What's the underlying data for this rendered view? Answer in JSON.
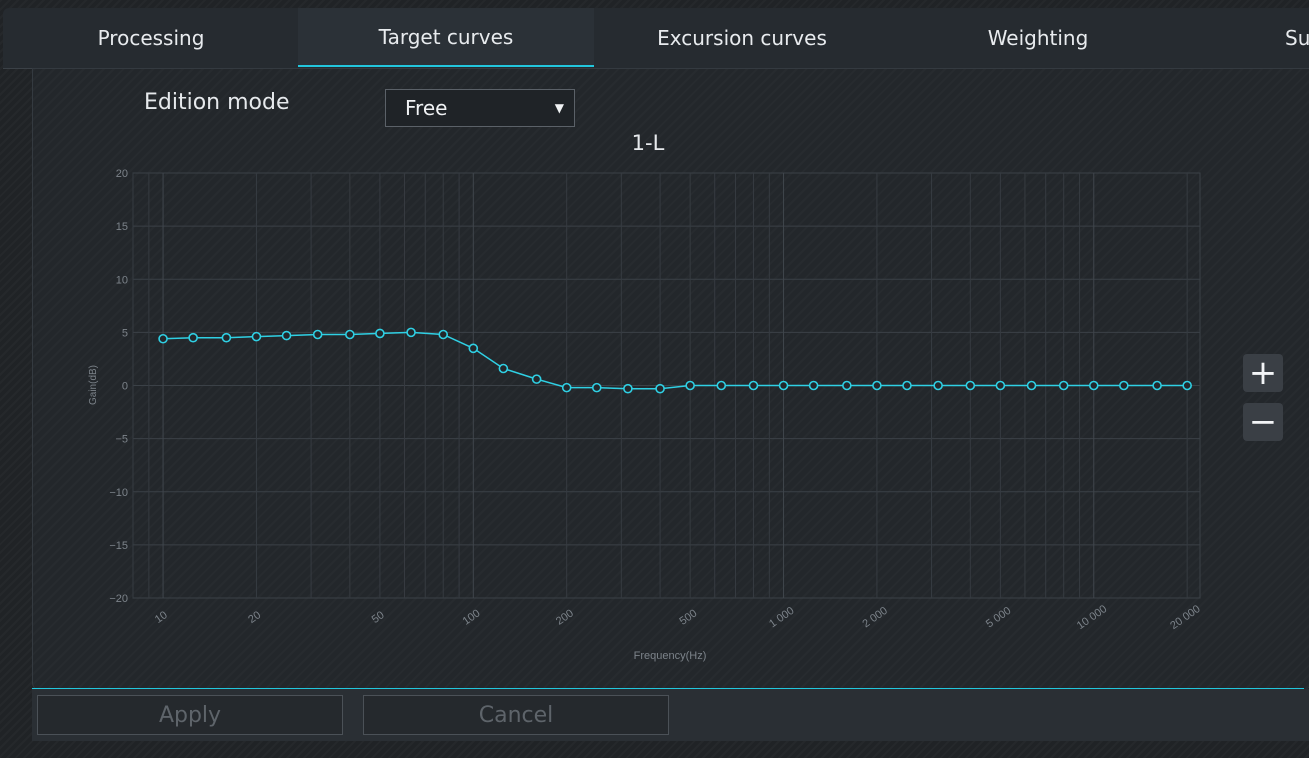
{
  "tabs": [
    {
      "label": "Processing",
      "active": false
    },
    {
      "label": "Target curves",
      "active": true
    },
    {
      "label": "Excursion curves",
      "active": false
    },
    {
      "label": "Weighting",
      "active": false
    },
    {
      "label": "Su",
      "active": false
    }
  ],
  "edition": {
    "label": "Edition mode",
    "value": "Free"
  },
  "zoom": {
    "plus": "+",
    "minus": "−"
  },
  "buttons": {
    "apply": "Apply",
    "cancel": "Cancel"
  },
  "colors": {
    "accent": "#22c6dc",
    "curve": "#2fd0e4"
  },
  "chart_data": {
    "type": "line",
    "title": "1-L",
    "xlabel": "Frequency(Hz)",
    "ylabel": "Gain(dB)",
    "xscale": "log",
    "xlim": [
      8,
      22000
    ],
    "ylim": [
      -20,
      20
    ],
    "yticks": [
      20,
      15,
      10,
      5,
      0,
      -5,
      -10,
      -15,
      -20
    ],
    "ytick_labels": [
      "20",
      "15",
      "10",
      "5",
      "0",
      "−5",
      "−10",
      "−15",
      "−20"
    ],
    "xticks": [
      10,
      20,
      50,
      100,
      200,
      500,
      1000,
      2000,
      5000,
      10000,
      20000
    ],
    "xtick_labels": [
      "10",
      "20",
      "50",
      "100",
      "200",
      "500",
      "1 000",
      "2 000",
      "5 000",
      "10 000",
      "20 000"
    ],
    "grid": true,
    "series": [
      {
        "x": [
          10,
          12.5,
          16,
          20,
          25,
          31.5,
          40,
          50,
          63,
          80,
          100,
          125,
          160,
          200,
          250,
          315,
          400,
          500,
          630,
          800,
          1000,
          1250,
          1600,
          2000,
          2500,
          3150,
          4000,
          5000,
          6300,
          8000,
          10000,
          12500,
          16000,
          20000
        ],
        "y": [
          4.4,
          4.5,
          4.5,
          4.6,
          4.7,
          4.8,
          4.8,
          4.9,
          5.0,
          4.8,
          3.5,
          1.6,
          0.6,
          -0.2,
          -0.2,
          -0.3,
          -0.3,
          0,
          0,
          0,
          0,
          0,
          0,
          0,
          0,
          0,
          0,
          0,
          0,
          0,
          0,
          0,
          0,
          0
        ]
      }
    ]
  }
}
